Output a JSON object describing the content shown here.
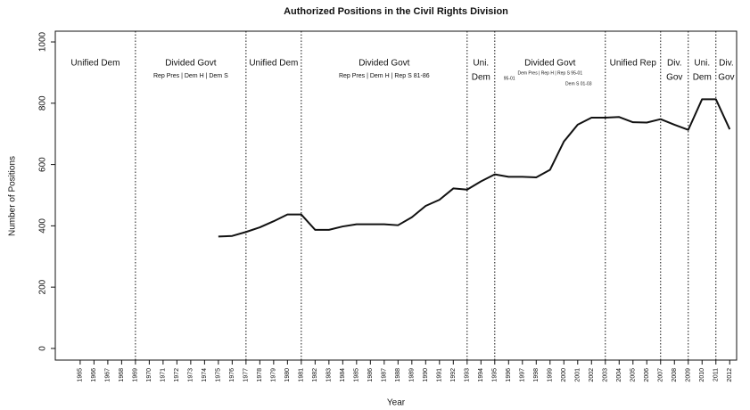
{
  "chart_data": {
    "type": "line",
    "title": "Authorized Positions in the Civil Rights Division",
    "xlabel": "Year",
    "ylabel": "Number of Positions",
    "x": [
      1975,
      1976,
      1977,
      1978,
      1979,
      1980,
      1981,
      1982,
      1983,
      1984,
      1985,
      1986,
      1987,
      1988,
      1989,
      1990,
      1991,
      1992,
      1993,
      1994,
      1995,
      1996,
      1997,
      1998,
      1999,
      2000,
      2001,
      2002,
      2003,
      2004,
      2005,
      2006,
      2007,
      2008,
      2009,
      2010,
      2011,
      2012
    ],
    "values": [
      365,
      367,
      380,
      395,
      415,
      437,
      437,
      387,
      387,
      398,
      405,
      405,
      405,
      402,
      428,
      465,
      485,
      522,
      518,
      545,
      568,
      560,
      560,
      558,
      583,
      675,
      730,
      753,
      753,
      755,
      738,
      737,
      748,
      730,
      713,
      813,
      813,
      715
    ],
    "color": "#111111",
    "xlim": [
      1963.2,
      2012.5
    ],
    "xticks": [
      1965,
      1966,
      1967,
      1968,
      1969,
      1970,
      1971,
      1972,
      1973,
      1974,
      1975,
      1976,
      1977,
      1978,
      1979,
      1980,
      1981,
      1982,
      1983,
      1984,
      1985,
      1986,
      1987,
      1988,
      1989,
      1990,
      1991,
      1992,
      1993,
      1994,
      1995,
      1996,
      1997,
      1998,
      1999,
      2000,
      2001,
      2002,
      2003,
      2004,
      2005,
      2006,
      2007,
      2008,
      2009,
      2010,
      2011,
      2012
    ],
    "ylim": [
      -38,
      1035
    ],
    "yticks": [
      0,
      200,
      400,
      600,
      800,
      1000
    ],
    "dividers": [
      1969,
      1977,
      1981,
      1993,
      1995,
      2003,
      2007,
      2009,
      2011
    ],
    "periods": [
      {
        "label": [
          "Unified Dem"
        ]
      },
      {
        "label": [
          "Divided Govt"
        ],
        "note": [
          "Rep Pres | Dem H | Dem S"
        ]
      },
      {
        "label": [
          "Unified Dem"
        ]
      },
      {
        "label": [
          "Divided Govt"
        ],
        "note": [
          "Rep Pres | Dem H | Rep S 81-86"
        ]
      },
      {
        "label": [
          "Uni.",
          "Dem"
        ]
      },
      {
        "label": [
          "Divided Govt"
        ],
        "note": [
          "Dem Pres | Rep H | Rep S 95-01",
          "95-01",
          "Dem S 01-03"
        ]
      },
      {
        "label": [
          "Unified Rep"
        ]
      },
      {
        "label": [
          "Div.",
          "Gov"
        ]
      },
      {
        "label": [
          "Uni.",
          "Dem"
        ]
      },
      {
        "label": [
          "Div.",
          "Gov"
        ]
      }
    ]
  }
}
